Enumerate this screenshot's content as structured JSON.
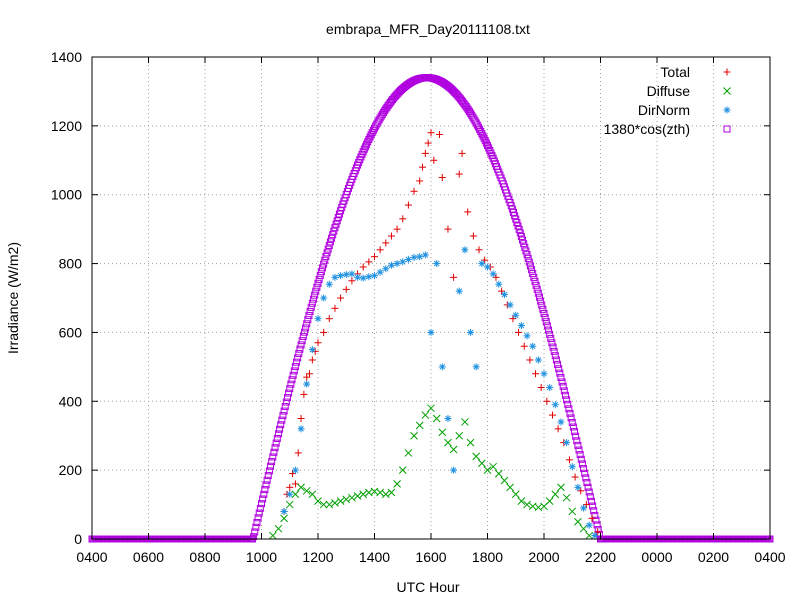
{
  "chart_data": {
    "type": "scatter",
    "title": "embrapa_MFR_Day20111108.txt",
    "xlabel": "UTC Hour",
    "ylabel": "Irradiance (W/m2)",
    "xlim": [
      4,
      28
    ],
    "ylim": [
      0,
      1400
    ],
    "x_ticks": [
      {
        "value": 4,
        "label": "0400"
      },
      {
        "value": 6,
        "label": "0600"
      },
      {
        "value": 8,
        "label": "0800"
      },
      {
        "value": 10,
        "label": "1000"
      },
      {
        "value": 12,
        "label": "1200"
      },
      {
        "value": 14,
        "label": "1400"
      },
      {
        "value": 16,
        "label": "1600"
      },
      {
        "value": 18,
        "label": "1800"
      },
      {
        "value": 20,
        "label": "2000"
      },
      {
        "value": 22,
        "label": "2200"
      },
      {
        "value": 24,
        "label": "0000"
      },
      {
        "value": 26,
        "label": "0200"
      },
      {
        "value": 28,
        "label": "0400"
      }
    ],
    "y_ticks": [
      0,
      200,
      400,
      600,
      800,
      1000,
      1200,
      1400
    ],
    "grid": true,
    "legend_position": "top-right",
    "series": [
      {
        "name": "Total",
        "marker": "plus",
        "color": "#e00000",
        "points": [
          [
            10.8,
            80
          ],
          [
            10.9,
            130
          ],
          [
            11.0,
            150
          ],
          [
            11.1,
            190
          ],
          [
            11.2,
            160
          ],
          [
            11.3,
            250
          ],
          [
            11.4,
            350
          ],
          [
            11.5,
            420
          ],
          [
            11.6,
            470
          ],
          [
            11.7,
            480
          ],
          [
            11.8,
            520
          ],
          [
            11.9,
            545
          ],
          [
            12.0,
            570
          ],
          [
            12.2,
            600
          ],
          [
            12.4,
            640
          ],
          [
            12.6,
            670
          ],
          [
            12.8,
            700
          ],
          [
            13.0,
            725
          ],
          [
            13.2,
            750
          ],
          [
            13.4,
            770
          ],
          [
            13.6,
            790
          ],
          [
            13.8,
            805
          ],
          [
            14.0,
            820
          ],
          [
            14.2,
            840
          ],
          [
            14.4,
            860
          ],
          [
            14.6,
            880
          ],
          [
            14.8,
            900
          ],
          [
            15.0,
            930
          ],
          [
            15.2,
            970
          ],
          [
            15.4,
            1010
          ],
          [
            15.6,
            1040
          ],
          [
            15.7,
            1080
          ],
          [
            15.8,
            1120
          ],
          [
            15.9,
            1150
          ],
          [
            16.0,
            1180
          ],
          [
            16.1,
            1100
          ],
          [
            16.3,
            1175
          ],
          [
            16.4,
            1050
          ],
          [
            16.6,
            900
          ],
          [
            16.8,
            760
          ],
          [
            17.0,
            1060
          ],
          [
            17.1,
            1120
          ],
          [
            17.3,
            950
          ],
          [
            17.5,
            880
          ],
          [
            17.7,
            840
          ],
          [
            17.9,
            810
          ],
          [
            18.1,
            790
          ],
          [
            18.3,
            760
          ],
          [
            18.5,
            720
          ],
          [
            18.7,
            680
          ],
          [
            18.9,
            640
          ],
          [
            19.1,
            600
          ],
          [
            19.3,
            560
          ],
          [
            19.5,
            520
          ],
          [
            19.7,
            480
          ],
          [
            19.9,
            440
          ],
          [
            20.1,
            400
          ],
          [
            20.3,
            360
          ],
          [
            20.5,
            320
          ],
          [
            20.7,
            280
          ],
          [
            20.9,
            230
          ],
          [
            21.1,
            180
          ],
          [
            21.3,
            140
          ],
          [
            21.5,
            100
          ],
          [
            21.7,
            60
          ],
          [
            21.9,
            20
          ]
        ]
      },
      {
        "name": "Diffuse",
        "marker": "cross",
        "color": "#00a000",
        "points": [
          [
            10.4,
            10
          ],
          [
            10.6,
            30
          ],
          [
            10.8,
            60
          ],
          [
            11.0,
            100
          ],
          [
            11.2,
            130
          ],
          [
            11.4,
            150
          ],
          [
            11.6,
            140
          ],
          [
            11.8,
            130
          ],
          [
            12.0,
            110
          ],
          [
            12.2,
            100
          ],
          [
            12.4,
            100
          ],
          [
            12.6,
            105
          ],
          [
            12.8,
            110
          ],
          [
            13.0,
            115
          ],
          [
            13.2,
            120
          ],
          [
            13.4,
            125
          ],
          [
            13.6,
            130
          ],
          [
            13.8,
            135
          ],
          [
            14.0,
            138
          ],
          [
            14.2,
            135
          ],
          [
            14.4,
            130
          ],
          [
            14.6,
            135
          ],
          [
            14.8,
            160
          ],
          [
            15.0,
            200
          ],
          [
            15.2,
            250
          ],
          [
            15.4,
            300
          ],
          [
            15.6,
            330
          ],
          [
            15.8,
            360
          ],
          [
            16.0,
            380
          ],
          [
            16.2,
            350
          ],
          [
            16.4,
            310
          ],
          [
            16.6,
            280
          ],
          [
            16.8,
            260
          ],
          [
            17.0,
            300
          ],
          [
            17.2,
            340
          ],
          [
            17.4,
            280
          ],
          [
            17.6,
            240
          ],
          [
            17.8,
            220
          ],
          [
            18.0,
            200
          ],
          [
            18.2,
            210
          ],
          [
            18.4,
            190
          ],
          [
            18.6,
            170
          ],
          [
            18.8,
            150
          ],
          [
            19.0,
            130
          ],
          [
            19.2,
            110
          ],
          [
            19.4,
            100
          ],
          [
            19.6,
            95
          ],
          [
            19.8,
            92
          ],
          [
            20.0,
            95
          ],
          [
            20.2,
            110
          ],
          [
            20.4,
            130
          ],
          [
            20.6,
            150
          ],
          [
            20.8,
            120
          ],
          [
            21.0,
            80
          ],
          [
            21.2,
            50
          ],
          [
            21.4,
            30
          ],
          [
            21.6,
            10
          ]
        ]
      },
      {
        "name": "DirNorm",
        "marker": "star",
        "color": "#1e90e0",
        "points": [
          [
            10.8,
            80
          ],
          [
            11.0,
            130
          ],
          [
            11.2,
            200
          ],
          [
            11.4,
            320
          ],
          [
            11.6,
            450
          ],
          [
            11.8,
            550
          ],
          [
            12.0,
            640
          ],
          [
            12.2,
            700
          ],
          [
            12.4,
            740
          ],
          [
            12.6,
            760
          ],
          [
            12.8,
            765
          ],
          [
            13.0,
            768
          ],
          [
            13.2,
            770
          ],
          [
            13.4,
            760
          ],
          [
            13.6,
            758
          ],
          [
            13.8,
            762
          ],
          [
            14.0,
            765
          ],
          [
            14.2,
            775
          ],
          [
            14.4,
            785
          ],
          [
            14.6,
            795
          ],
          [
            14.8,
            800
          ],
          [
            15.0,
            805
          ],
          [
            15.2,
            812
          ],
          [
            15.4,
            818
          ],
          [
            15.6,
            820
          ],
          [
            15.8,
            825
          ],
          [
            16.0,
            600
          ],
          [
            16.2,
            800
          ],
          [
            16.4,
            500
          ],
          [
            16.6,
            350
          ],
          [
            16.8,
            200
          ],
          [
            17.0,
            720
          ],
          [
            17.2,
            840
          ],
          [
            17.4,
            600
          ],
          [
            17.6,
            500
          ],
          [
            17.8,
            800
          ],
          [
            18.0,
            790
          ],
          [
            18.2,
            770
          ],
          [
            18.4,
            740
          ],
          [
            18.6,
            710
          ],
          [
            18.8,
            680
          ],
          [
            19.0,
            650
          ],
          [
            19.2,
            620
          ],
          [
            19.4,
            590
          ],
          [
            19.6,
            560
          ],
          [
            19.8,
            520
          ],
          [
            20.0,
            480
          ],
          [
            20.2,
            440
          ],
          [
            20.4,
            390
          ],
          [
            20.6,
            340
          ],
          [
            20.8,
            280
          ],
          [
            21.0,
            210
          ],
          [
            21.2,
            150
          ],
          [
            21.4,
            90
          ],
          [
            21.6,
            40
          ],
          [
            21.8,
            10
          ]
        ]
      },
      {
        "name": "1380*cos(zth)",
        "marker": "square",
        "color": "#b000e0",
        "points": []
      }
    ],
    "reference_curve": {
      "name": "1380*cos(zth)",
      "peak_value": 1340,
      "peak_hour": 15.85,
      "start_hour": 9.7,
      "end_hour": 22.0
    }
  }
}
